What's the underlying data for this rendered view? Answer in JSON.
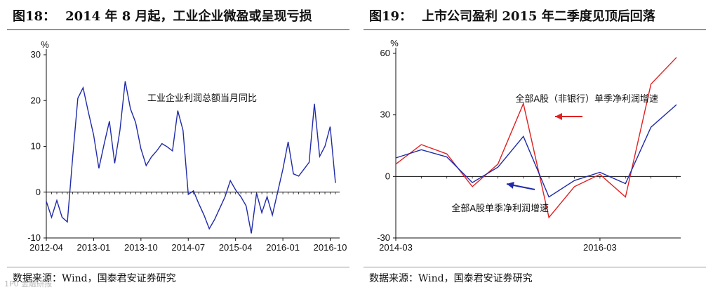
{
  "left": {
    "fig_number": "图18：",
    "title": "2014 年 8 月起，工业企业微盈或呈现亏损",
    "source": "数据来源：Wind，国泰君安证券研究"
  },
  "right": {
    "fig_number": "图19：",
    "title": "上市公司盈利 2015 年二季度见顶后回落",
    "source": "数据来源：Wind，国泰君安证券研究"
  },
  "watermark": "1P0 金融研报",
  "chart_data": [
    {
      "type": "line",
      "unit": "%",
      "ylim": [
        -10,
        30
      ],
      "yticks": [
        -10,
        0,
        10,
        20,
        30
      ],
      "x": [
        "2012-04",
        "2012-05",
        "2012-06",
        "2012-07",
        "2012-08",
        "2012-09",
        "2012-10",
        "2012-11",
        "2012-12",
        "2013-01",
        "2013-02",
        "2013-03",
        "2013-04",
        "2013-05",
        "2013-06",
        "2013-07",
        "2013-08",
        "2013-09",
        "2013-10",
        "2013-11",
        "2013-12",
        "2014-01",
        "2014-02",
        "2014-03",
        "2014-04",
        "2014-05",
        "2014-06",
        "2014-07",
        "2014-08",
        "2014-09",
        "2014-10",
        "2014-11",
        "2014-12",
        "2015-01",
        "2015-02",
        "2015-03",
        "2015-04",
        "2015-05",
        "2015-06",
        "2015-07",
        "2015-08",
        "2015-09",
        "2015-10",
        "2015-11",
        "2015-12",
        "2016-01",
        "2016-02",
        "2016-03",
        "2016-04",
        "2016-05",
        "2016-06",
        "2016-07",
        "2016-08",
        "2016-09",
        "2016-10",
        "2016-11"
      ],
      "xticks": [
        "2012-04",
        "2013-01",
        "2013-10",
        "2014-07",
        "2015-04",
        "2016-01",
        "2016-10"
      ],
      "grid": false,
      "annotations": [
        {
          "text": "工业企业利润总额当月同比",
          "x": "2013-09",
          "y": 20.5
        }
      ],
      "series": [
        {
          "name": "工业企业利润总额当月同比",
          "color": "#1f2aa8",
          "values": [
            -2,
            -5.5,
            -1.8,
            -5.5,
            -6.5,
            7.5,
            20.5,
            22.8,
            17.5,
            12.5,
            5.2,
            10.5,
            15.5,
            6.3,
            13.5,
            24.2,
            18.2,
            15.2,
            9.5,
            5.8,
            7.7,
            9.0,
            10.6,
            9.9,
            9.0,
            17.8,
            13.5,
            -0.5,
            0.3,
            -2.5,
            -5.0,
            -8.0,
            -6.0,
            -3.5,
            -1.0,
            2.5,
            0.5,
            -1.0,
            -3.0,
            -9.0,
            -0.2,
            -4.5,
            -1.0,
            -5.0,
            0.0,
            5.0,
            11.0,
            4.0,
            3.5,
            5.0,
            6.5,
            19.3,
            7.8,
            10.0,
            14.3,
            2.0
          ]
        }
      ]
    },
    {
      "type": "line",
      "unit": "%",
      "ylim": [
        -30,
        60
      ],
      "yticks": [
        -30,
        0,
        30,
        60
      ],
      "x": [
        "2014-03",
        "2014-06",
        "2014-09",
        "2014-12",
        "2015-03",
        "2015-06",
        "2015-09",
        "2015-12",
        "2016-03",
        "2016-06",
        "2016-09",
        "2016-12"
      ],
      "xticks": [
        "2014-03",
        "2014-11",
        "2015-07",
        "2016-03",
        "2016-11"
      ],
      "grid": false,
      "annotations": [
        {
          "text": "全部A股（非银行）单季净利润增速",
          "series": 0
        },
        {
          "text": "全部A股单季净利润增速",
          "series": 1
        }
      ],
      "series": [
        {
          "name": "全部A股（非银行）单季净利润增速",
          "color": "#e02020",
          "values": [
            6,
            15.5,
            11,
            -5,
            6,
            35.5,
            -20,
            -5,
            1,
            -10,
            45,
            58
          ]
        },
        {
          "name": "全部A股单季净利润增速",
          "color": "#1f2aa8",
          "values": [
            9,
            13,
            9.5,
            -3,
            4.5,
            19.5,
            -10,
            -2,
            2,
            -3.5,
            24,
            35
          ]
        }
      ]
    }
  ]
}
